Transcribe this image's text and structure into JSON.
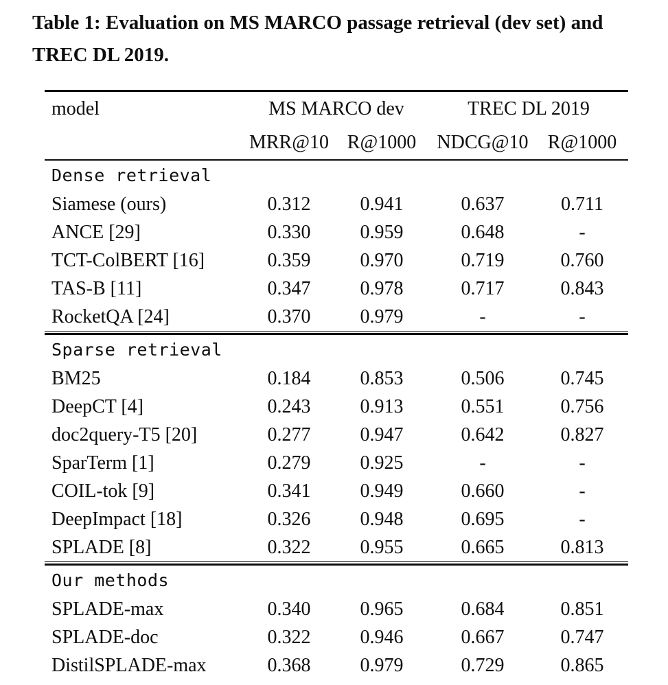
{
  "caption": "Table 1: Evaluation on MS MARCO passage retrieval (dev set) and TREC DL 2019.",
  "table": {
    "columns": {
      "model": "model",
      "group1": "MS MARCO dev",
      "group2": "TREC DL 2019",
      "sub": [
        "MRR@10",
        "R@1000",
        "NDCG@10",
        "R@1000"
      ]
    },
    "missing_value": "-",
    "sections": [
      {
        "header": "Dense retrieval",
        "rows": [
          {
            "model": "Siamese (ours)",
            "values": [
              "0.312",
              "0.941",
              "0.637",
              "0.711"
            ]
          },
          {
            "model": "ANCE [29]",
            "values": [
              "0.330",
              "0.959",
              "0.648",
              "-"
            ]
          },
          {
            "model": "TCT-ColBERT [16]",
            "values": [
              "0.359",
              "0.970",
              "0.719",
              "0.760"
            ]
          },
          {
            "model": "TAS-B [11]",
            "values": [
              "0.347",
              "0.978",
              "0.717",
              "0.843"
            ]
          },
          {
            "model": "RocketQA [24]",
            "values": [
              "0.370",
              "0.979",
              "-",
              "-"
            ]
          }
        ]
      },
      {
        "header": "Sparse retrieval",
        "rows": [
          {
            "model": "BM25",
            "values": [
              "0.184",
              "0.853",
              "0.506",
              "0.745"
            ]
          },
          {
            "model": "DeepCT [4]",
            "values": [
              "0.243",
              "0.913",
              "0.551",
              "0.756"
            ]
          },
          {
            "model": "doc2query-T5 [20]",
            "values": [
              "0.277",
              "0.947",
              "0.642",
              "0.827"
            ]
          },
          {
            "model": "SparTerm [1]",
            "values": [
              "0.279",
              "0.925",
              "-",
              "-"
            ]
          },
          {
            "model": "COIL-tok [9]",
            "values": [
              "0.341",
              "0.949",
              "0.660",
              "-"
            ]
          },
          {
            "model": "DeepImpact [18]",
            "values": [
              "0.326",
              "0.948",
              "0.695",
              "-"
            ]
          },
          {
            "model": "SPLADE [8]",
            "values": [
              "0.322",
              "0.955",
              "0.665",
              "0.813"
            ]
          }
        ]
      },
      {
        "header": "Our methods",
        "rows": [
          {
            "model": "SPLADE-max",
            "values": [
              "0.340",
              "0.965",
              "0.684",
              "0.851"
            ]
          },
          {
            "model": "SPLADE-doc",
            "values": [
              "0.322",
              "0.946",
              "0.667",
              "0.747"
            ]
          },
          {
            "model": "DistilSPLADE-max",
            "values": [
              "0.368",
              "0.979",
              "0.729",
              "0.865"
            ]
          }
        ]
      }
    ]
  }
}
